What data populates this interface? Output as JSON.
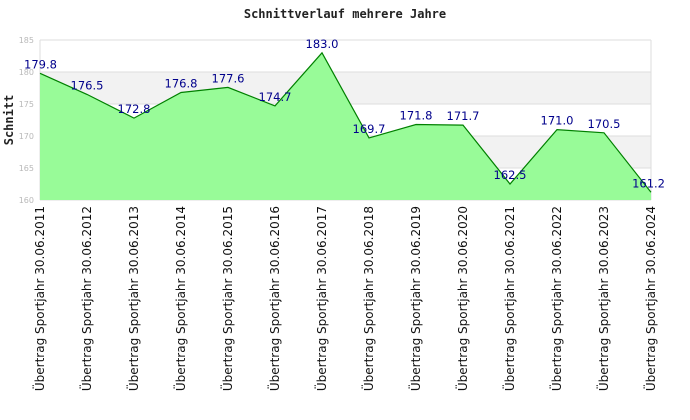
{
  "chart_data": {
    "type": "area",
    "title": "Schnittverlauf mehrere Jahre",
    "ylabel": "Schnitt",
    "xlabel": "",
    "ylim": [
      160,
      185
    ],
    "yticks": [
      160,
      165,
      170,
      175,
      180,
      185
    ],
    "grid": true,
    "categories": [
      "Übertrag Sportjahr 30.06.2011",
      "Übertrag Sportjahr 30.06.2012",
      "Übertrag Sportjahr 30.06.2013",
      "Übertrag Sportjahr 30.06.2014",
      "Übertrag Sportjahr 30.06.2015",
      "Übertrag Sportjahr 30.06.2016",
      "Übertrag Sportjahr 30.06.2017",
      "Übertrag Sportjahr 30.06.2018",
      "Übertrag Sportjahr 30.06.2019",
      "Übertrag Sportjahr 30.06.2020",
      "Übertrag Sportjahr 30.06.2021",
      "Übertrag Sportjahr 30.06.2022",
      "Übertrag Sportjahr 30.06.2023",
      "Übertrag Sportjahr 30.06.2024"
    ],
    "values": [
      179.8,
      176.5,
      172.8,
      176.8,
      177.6,
      174.7,
      183.0,
      169.7,
      171.8,
      171.7,
      162.5,
      171.0,
      170.5,
      161.2
    ],
    "data_labels": [
      "179.8",
      "176.5",
      "172.8",
      "176.8",
      "177.6",
      "174.7",
      "183.0",
      "169.7",
      "171.8",
      "171.7",
      "162.5",
      "171.0",
      "170.5",
      "161.2"
    ],
    "colors": {
      "fill": "#98fb98",
      "line": "#008000",
      "band": "#f2f2f2",
      "grid": "#dddddd",
      "label": "#00008b"
    }
  }
}
